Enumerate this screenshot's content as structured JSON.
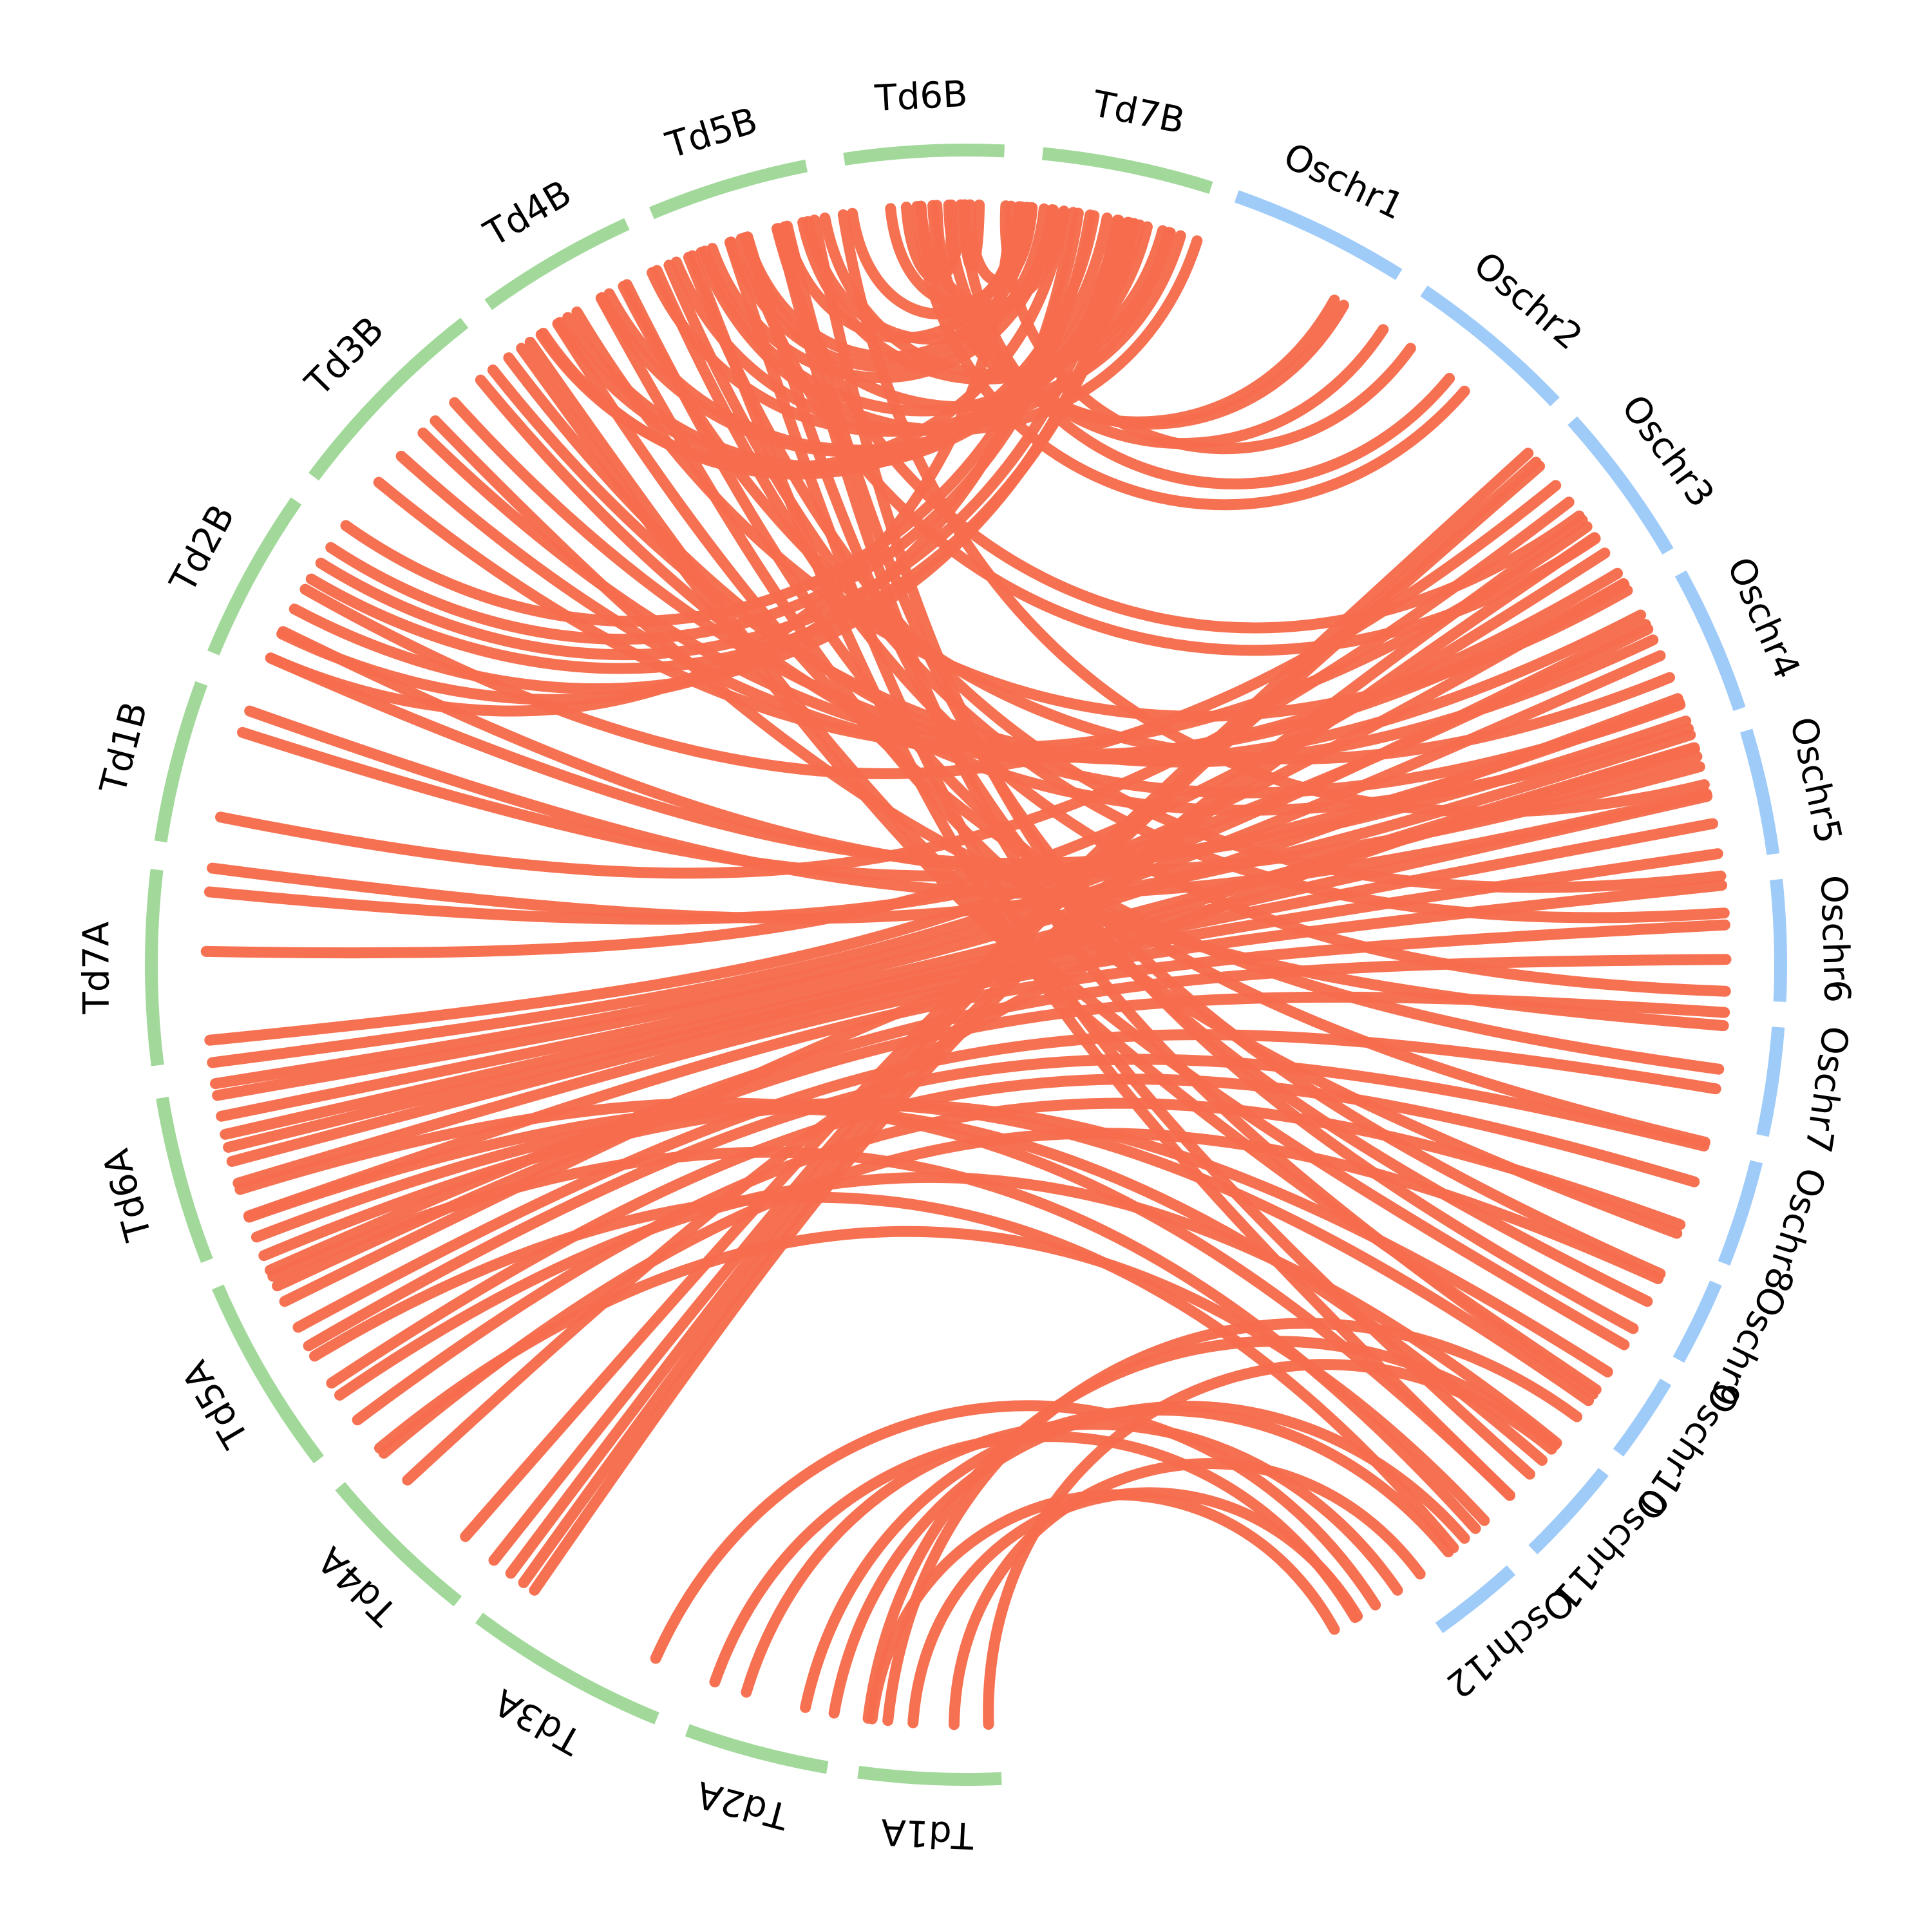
{
  "colors": {
    "rice": "#9fcbf9",
    "durum": "#a2d99b",
    "link": "#f66c4c",
    "label": "#000000"
  },
  "chart_data": {
    "type": "circos",
    "title": "",
    "chromosomes": [
      {
        "id": "Td1A",
        "group": "durum",
        "start": 87.5,
        "end": 97.6
      },
      {
        "id": "Td2A",
        "group": "durum",
        "start": 99.8,
        "end": 110.0
      },
      {
        "id": "Td3A",
        "group": "durum",
        "start": 112.3,
        "end": 126.7
      },
      {
        "id": "Td4A",
        "group": "durum",
        "start": 128.6,
        "end": 140.2
      },
      {
        "id": "Td5A",
        "group": "durum",
        "start": 142.6,
        "end": 156.7
      },
      {
        "id": "Td6A",
        "group": "durum",
        "start": 158.7,
        "end": 170.6
      },
      {
        "id": "Td7A",
        "group": "durum",
        "start": 172.9,
        "end": 186.7
      },
      {
        "id": "Td1B",
        "group": "durum",
        "start": 188.7,
        "end": 200.2
      },
      {
        "id": "Td2B",
        "group": "durum",
        "start": 202.5,
        "end": 214.7
      },
      {
        "id": "Td3B",
        "group": "durum",
        "start": 216.8,
        "end": 232.0
      },
      {
        "id": "Td4B",
        "group": "durum",
        "start": 234.1,
        "end": 245.4
      },
      {
        "id": "Td5B",
        "group": "durum",
        "start": 247.3,
        "end": 258.7
      },
      {
        "id": "Td6B",
        "group": "durum",
        "start": 261.4,
        "end": 272.7
      },
      {
        "id": "Td7B",
        "group": "durum",
        "start": 275.4,
        "end": 287.5
      },
      {
        "id": "Oschr1",
        "group": "rice",
        "start": 289.4,
        "end": 302.1
      },
      {
        "id": "Oschr2",
        "group": "rice",
        "start": 304.2,
        "end": 316.3
      },
      {
        "id": "Oschr3",
        "group": "rice",
        "start": 318.1,
        "end": 329.5
      },
      {
        "id": "Oschr4",
        "group": "rice",
        "start": 331.3,
        "end": 341.7
      },
      {
        "id": "Oschr5",
        "group": "rice",
        "start": 343.3,
        "end": 352.2
      },
      {
        "id": "Oschr6",
        "group": "rice",
        "start": 354.0,
        "end": 362.6
      },
      {
        "id": "Oschr7",
        "group": "rice",
        "start": 364.4,
        "end": 372.1
      },
      {
        "id": "Oschr8",
        "group": "rice",
        "start": 374.0,
        "end": 381.5
      },
      {
        "id": "Oschr9",
        "group": "rice",
        "start": 383.0,
        "end": 389.0
      },
      {
        "id": "Oschr10",
        "group": "rice",
        "start": 390.8,
        "end": 396.8
      },
      {
        "id": "Oschr11",
        "group": "rice",
        "start": 398.5,
        "end": 405.9
      },
      {
        "id": "Oschr12",
        "group": "rice",
        "start": 408.0,
        "end": 414.5
      }
    ],
    "links": [
      [
        249.6,
        287.7
      ],
      [
        253.1,
        286.4
      ],
      [
        247.6,
        285.5
      ],
      [
        259.3,
        285.6
      ],
      [
        257.6,
        285.0
      ],
      [
        249.9,
        283.8
      ],
      [
        245.6,
        283.2
      ],
      [
        242.0,
        282.8
      ],
      [
        241.4,
        282.3
      ],
      [
        238.4,
        281.6
      ],
      [
        237.7,
        280.7
      ],
      [
        236.2,
        279.7
      ],
      [
        207.9,
        282.4
      ],
      [
        205.8,
        278.1
      ],
      [
        203.8,
        273.4
      ],
      [
        275.0,
        270.3
      ],
      [
        269.9,
        271.0
      ],
      [
        267.8,
        268.9
      ],
      [
        265.5,
        269.6
      ],
      [
        264.3,
        274.6
      ],
      [
        261.4,
        274.2
      ],
      [
        256.2,
        274.0
      ],
      [
        253.2,
        274.9
      ],
      [
        252.0,
        275.9
      ],
      [
        250.5,
        276.6
      ],
      [
        258.0,
        276.5
      ],
      [
        236.0,
        277.4
      ],
      [
        266.6,
        277.4
      ],
      [
        215.3,
        278.5
      ],
      [
        213.3,
        279.4
      ],
      [
        211.9,
        281.5
      ],
      [
        210.5,
        282.8
      ],
      [
        267.5,
        299.8
      ],
      [
        273.0,
        305.8
      ],
      [
        266.3,
        311.0
      ],
      [
        209.6,
        320.9
      ],
      [
        219.4,
        324.8
      ],
      [
        222.0,
        329.0
      ],
      [
        268.7,
        303.3
      ],
      [
        269.9,
        309.5
      ],
      [
        266.6,
        299.0
      ],
      [
        224.4,
        329.9
      ],
      [
        239.2,
        330.5
      ],
      [
        252.8,
        325.9
      ],
      [
        255.6,
        323.8
      ],
      [
        227.7,
        332.6
      ],
      [
        231.5,
        334.7
      ],
      [
        243.2,
        337.8
      ],
      [
        233.0,
        340.0
      ],
      [
        230.3,
        341.9
      ],
      [
        197.8,
        339.8
      ],
      [
        187.3,
        342.4
      ],
      [
        185.5,
        333.8
      ],
      [
        203.8,
        341.3
      ],
      [
        206.0,
        344.9
      ],
      [
        199.5,
        347.0
      ],
      [
        260.7,
        346.3
      ],
      [
        248.6,
        353.3
      ],
      [
        247.0,
        356.1
      ],
      [
        246.0,
        362.0
      ],
      [
        225.7,
        364.6
      ],
      [
        237.5,
        367.9
      ],
      [
        243.5,
        373.5
      ],
      [
        241.3,
        380.7
      ],
      [
        256.4,
        384.0
      ],
      [
        258.5,
        388.6
      ],
      [
        255.7,
        394.4
      ],
      [
        251.9,
        402.1
      ],
      [
        248.9,
        404.3
      ],
      [
        235.0,
        390.0
      ],
      [
        234.2,
        394.0
      ],
      [
        253.3,
        386.3
      ],
      [
        140.0,
        384.4
      ],
      [
        143.2,
        380.0
      ],
      [
        146.6,
        376.6
      ],
      [
        149.9,
        373.8
      ],
      [
        151.5,
        369.4
      ],
      [
        155.0,
        363.6
      ],
      [
        156.3,
        359.6
      ],
      [
        160.7,
        357.0
      ],
      [
        163.3,
        354.0
      ],
      [
        165.0,
        351.6
      ],
      [
        166.1,
        349.3
      ],
      [
        167.1,
        347.2
      ],
      [
        168.5,
        344.1
      ],
      [
        170.1,
        339.5
      ],
      [
        171.0,
        336.0
      ],
      [
        153.7,
        343.4
      ],
      [
        172.6,
        333.4
      ],
      [
        174.3,
        330.0
      ],
      [
        181.0,
        327.2
      ],
      [
        191.2,
        322.5
      ],
      [
        131.2,
        317.7
      ],
      [
        128.4,
        318.6
      ],
      [
        126.8,
        319.0
      ],
      [
        125.6,
        324.2
      ],
      [
        124.6,
        325.8
      ],
      [
        137.3,
        343.5
      ],
      [
        145.5,
        399.0
      ],
      [
        140.5,
        407.0
      ],
      [
        149.0,
        410.1
      ],
      [
        155.8,
        407.9
      ],
      [
        162.8,
        404.3
      ],
      [
        160.6,
        400.7
      ],
      [
        159.0,
        395.0
      ],
      [
        157.5,
        392.4
      ],
      [
        114.1,
        417.4
      ],
      [
        106.8,
        415.4
      ],
      [
        109.3,
        419.2
      ],
      [
        97.1,
        421.0
      ],
      [
        94.0,
        419.0
      ],
      [
        90.9,
        413.3
      ],
      [
        102.2,
        410.6
      ],
      [
        100.0,
        409.0
      ],
      [
        97.4,
        399.2
      ],
      [
        95.9,
        396.5
      ],
      [
        88.3,
        399.6
      ]
    ]
  }
}
